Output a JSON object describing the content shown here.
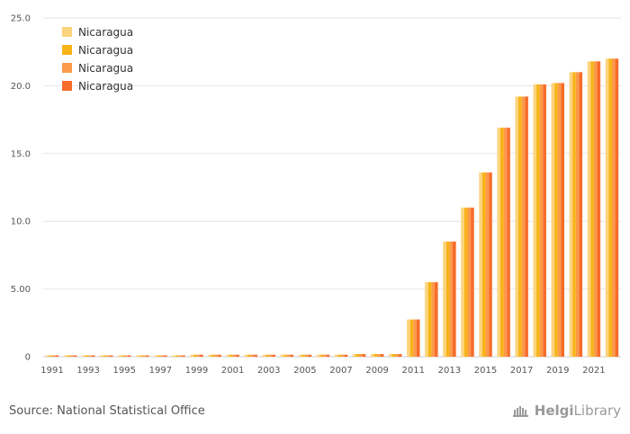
{
  "source_text": "Source: National Statistical Office",
  "logo": {
    "part1": "Helgi",
    "part2": "Library",
    "icon": "helgi-library-logo-icon"
  },
  "chart_data": {
    "type": "bar",
    "title": "",
    "xlabel": "",
    "ylabel": "",
    "ylim": [
      0,
      25
    ],
    "yticks": [
      "0",
      "5.00",
      "10.0",
      "15.0",
      "20.0",
      "25.0"
    ],
    "grid": true,
    "legend_placement": "top-left",
    "categories": [
      "1991",
      "1992",
      "1993",
      "1994",
      "1995",
      "1996",
      "1997",
      "1998",
      "1999",
      "2000",
      "2001",
      "2002",
      "2003",
      "2004",
      "2005",
      "2006",
      "2007",
      "2008",
      "2009",
      "2010",
      "2011",
      "2012",
      "2013",
      "2014",
      "2015",
      "2016",
      "2017",
      "2018",
      "2019",
      "2020",
      "2021",
      "2022"
    ],
    "xtick_labels": [
      "1991",
      "1993",
      "1995",
      "1997",
      "1999",
      "2001",
      "2003",
      "2005",
      "2007",
      "2009",
      "2011",
      "2013",
      "2015",
      "2017",
      "2019",
      "2021"
    ],
    "series": [
      {
        "name": "Nicaragua",
        "color": "#fdd47e",
        "values": [
          0.1,
          0.1,
          0.1,
          0.1,
          0.1,
          0.1,
          0.1,
          0.1,
          0.15,
          0.15,
          0.15,
          0.15,
          0.15,
          0.15,
          0.15,
          0.15,
          0.15,
          0.2,
          0.2,
          0.2,
          2.75,
          5.5,
          8.5,
          11.0,
          13.6,
          16.9,
          19.2,
          20.1,
          20.2,
          21.0,
          21.8,
          22.0
        ]
      },
      {
        "name": "Nicaragua",
        "color": "#f8b418",
        "values": [
          0.1,
          0.1,
          0.1,
          0.1,
          0.1,
          0.1,
          0.1,
          0.1,
          0.15,
          0.15,
          0.15,
          0.15,
          0.15,
          0.15,
          0.15,
          0.15,
          0.15,
          0.2,
          0.2,
          0.2,
          2.75,
          5.5,
          8.5,
          11.0,
          13.6,
          16.9,
          19.2,
          20.1,
          20.2,
          21.0,
          21.8,
          22.0
        ]
      },
      {
        "name": "Nicaragua",
        "color": "#fb9a4a",
        "values": [
          0.1,
          0.1,
          0.1,
          0.1,
          0.1,
          0.1,
          0.1,
          0.1,
          0.15,
          0.15,
          0.15,
          0.15,
          0.15,
          0.15,
          0.15,
          0.15,
          0.15,
          0.2,
          0.2,
          0.2,
          2.75,
          5.5,
          8.5,
          11.0,
          13.6,
          16.9,
          19.2,
          20.1,
          20.2,
          21.0,
          21.8,
          22.0
        ]
      },
      {
        "name": "Nicaragua",
        "color": "#f86c2a",
        "values": [
          0.1,
          0.1,
          0.1,
          0.1,
          0.1,
          0.1,
          0.1,
          0.1,
          0.15,
          0.15,
          0.15,
          0.15,
          0.15,
          0.15,
          0.15,
          0.15,
          0.15,
          0.2,
          0.2,
          0.2,
          2.75,
          5.5,
          8.5,
          11.0,
          13.6,
          16.9,
          19.2,
          20.1,
          20.2,
          21.0,
          21.8,
          22.0
        ]
      }
    ]
  }
}
